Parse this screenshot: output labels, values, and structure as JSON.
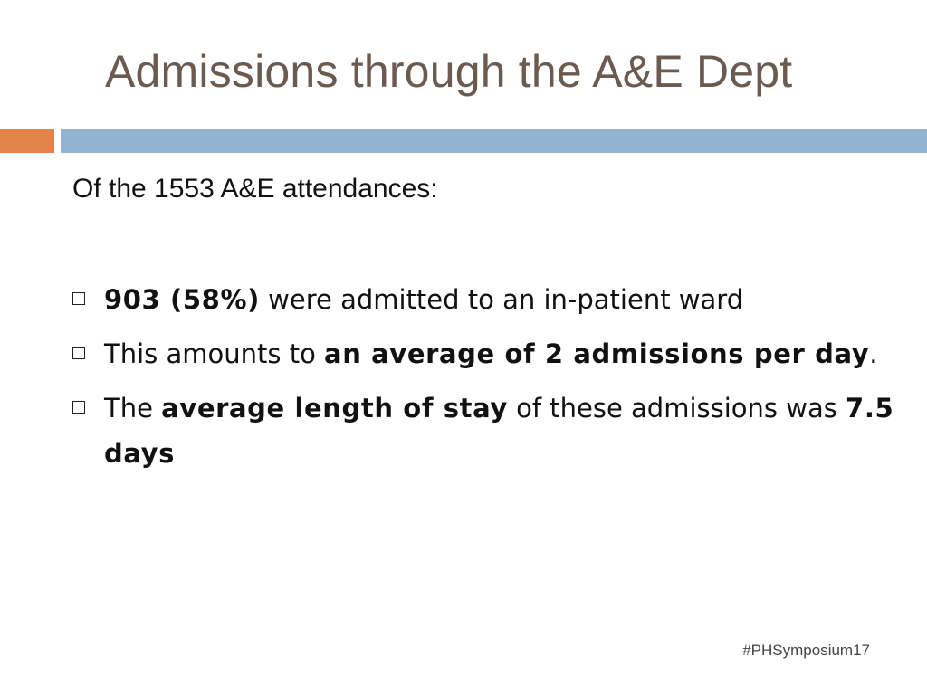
{
  "slide": {
    "title": "Admissions through the A&E Dept",
    "intro": "Of the 1553 A&E attendances:",
    "bullets": [
      {
        "segments": [
          {
            "text": "903 (58%)",
            "bold": true
          },
          {
            "text": " were admitted to an in-patient ward",
            "bold": false
          }
        ]
      },
      {
        "segments": [
          {
            "text": "This amounts to ",
            "bold": false
          },
          {
            "text": "an average of 2 admissions per day",
            "bold": true
          },
          {
            "text": ".",
            "bold": false
          }
        ]
      },
      {
        "segments": [
          {
            "text": "The ",
            "bold": false
          },
          {
            "text": "average length of stay",
            "bold": true
          },
          {
            "text": " of these admissions was ",
            "bold": false
          },
          {
            "text": "7.5 days",
            "bold": true
          }
        ]
      }
    ],
    "footer": "#PHSymposium17"
  },
  "colors": {
    "title": "#6b5a50",
    "accent_bar": "#e2834a",
    "main_bar": "#93b3d3"
  }
}
